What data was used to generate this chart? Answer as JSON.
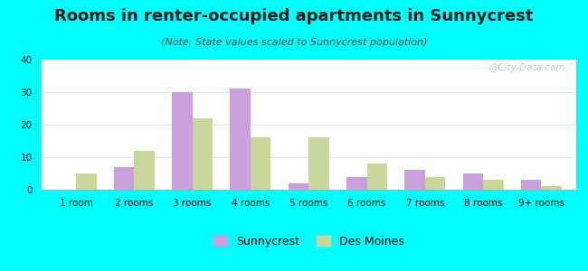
{
  "title": "Rooms in renter-occupied apartments in Sunnycrest",
  "subtitle": "(Note: State values scaled to Sunnycrest population)",
  "categories": [
    "1 room",
    "2 rooms",
    "3 rooms",
    "4 rooms",
    "5 rooms",
    "6 rooms",
    "7 rooms",
    "8 rooms",
    "9+ rooms"
  ],
  "sunnycrest_values": [
    0,
    7,
    30,
    31,
    2,
    4,
    6,
    5,
    3
  ],
  "des_moines_values": [
    5,
    12,
    22,
    16,
    16,
    8,
    4,
    3,
    1
  ],
  "sunnycrest_color": "#c9a0dc",
  "des_moines_color": "#c8d89a",
  "ylim": [
    0,
    40
  ],
  "yticks": [
    0,
    10,
    20,
    30,
    40
  ],
  "background_outer": "#00ffff",
  "bar_width": 0.35,
  "title_fontsize": 13,
  "subtitle_fontsize": 8,
  "tick_fontsize": 7.5,
  "legend_fontsize": 9,
  "watermark_text": "@City-Data.com"
}
